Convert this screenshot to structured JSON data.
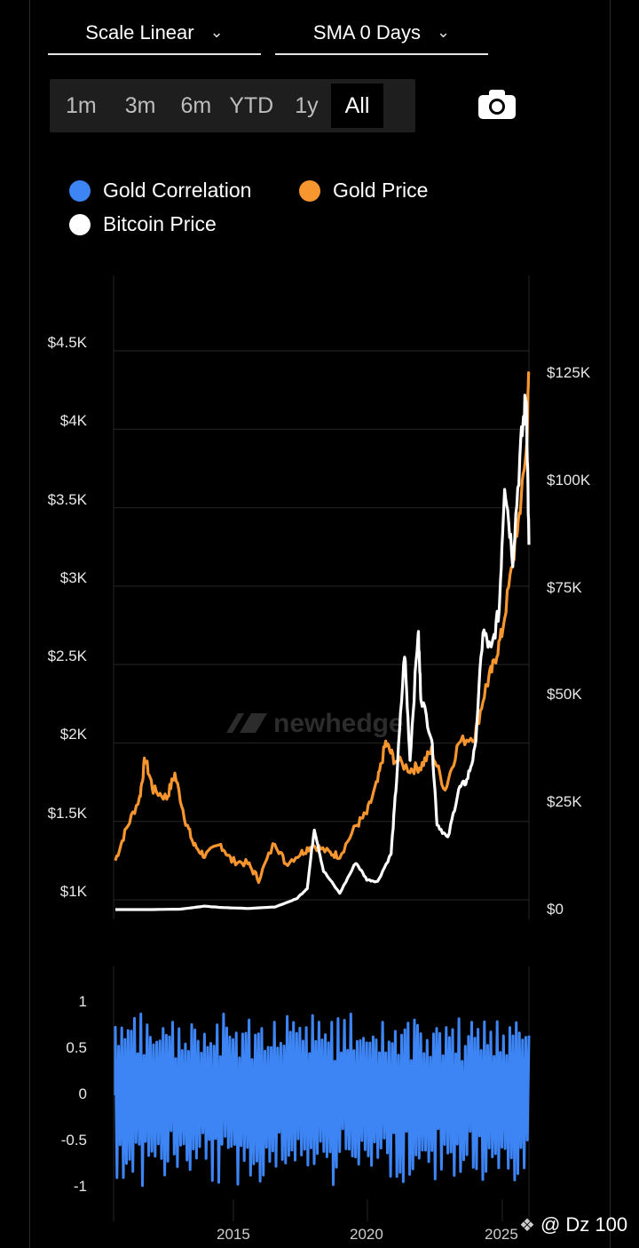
{
  "controls": {
    "scale_label": "Scale Linear",
    "sma_label": "SMA 0 Days",
    "ranges": [
      "1m",
      "3m",
      "6m",
      "YTD",
      "1y",
      "All"
    ],
    "active_range": "All"
  },
  "legend": [
    {
      "label": "Gold Correlation",
      "color": "#3d84f5"
    },
    {
      "label": "Gold Price",
      "color": "#f7952f"
    },
    {
      "label": "Bitcoin Price",
      "color": "#ffffff"
    }
  ],
  "watermark": {
    "logo": "newhedge",
    "badge": "@ Dz 100"
  },
  "chart_data": [
    {
      "type": "line",
      "title": "",
      "y_left_ticks": [
        "$1K",
        "$1.5K",
        "$2K",
        "$2.5K",
        "$3K",
        "$3.5K",
        "$4K",
        "$4.5K"
      ],
      "y_right_ticks": [
        "$0",
        "$25K",
        "$50K",
        "$75K",
        "$100K",
        "$125K"
      ],
      "ylim_left": [
        900,
        4600
      ],
      "ylim_right": [
        0,
        125000
      ],
      "x_ticks": [
        "2015",
        "2020",
        "2025"
      ],
      "series": [
        {
          "name": "Gold Price",
          "axis": "left",
          "color": "#f7952f",
          "x": [
            2010.6,
            2011.0,
            2011.5,
            2011.7,
            2012.0,
            2012.5,
            2012.8,
            2013.2,
            2013.5,
            2013.9,
            2014.5,
            2014.9,
            2015.5,
            2015.9,
            2016.5,
            2016.9,
            2017.5,
            2017.9,
            2018.5,
            2018.9,
            2019.5,
            2019.9,
            2020.3,
            2020.6,
            2020.9,
            2021.5,
            2021.9,
            2022.3,
            2022.8,
            2023.3,
            2023.9,
            2024.3,
            2024.6,
            2024.9,
            2025.3,
            2025.5,
            2025.8,
            2025.9
          ],
          "y": [
            1200,
            1400,
            1600,
            1850,
            1650,
            1600,
            1750,
            1450,
            1300,
            1230,
            1300,
            1200,
            1180,
            1080,
            1320,
            1180,
            1250,
            1300,
            1250,
            1230,
            1420,
            1500,
            1700,
            1950,
            1850,
            1780,
            1800,
            1900,
            1650,
            1950,
            2000,
            2300,
            2450,
            2650,
            3100,
            3350,
            3800,
            4300
          ]
        },
        {
          "name": "Bitcoin Price",
          "axis": "right",
          "color": "#ffffff",
          "x": [
            2010.6,
            2012.0,
            2013.0,
            2013.9,
            2014.5,
            2015.5,
            2016.5,
            2017.3,
            2017.7,
            2017.96,
            2018.3,
            2018.9,
            2019.5,
            2019.9,
            2020.3,
            2020.8,
            2021.0,
            2021.3,
            2021.5,
            2021.8,
            2021.9,
            2022.3,
            2022.5,
            2022.9,
            2023.3,
            2023.6,
            2023.9,
            2024.2,
            2024.5,
            2024.8,
            2025.0,
            2025.3,
            2025.6,
            2025.8,
            2025.9
          ],
          "y": [
            0,
            10,
            100,
            800,
            500,
            250,
            600,
            2500,
            5000,
            19000,
            9000,
            3800,
            11000,
            7000,
            6500,
            13000,
            30000,
            60000,
            35000,
            65000,
            50000,
            40000,
            20000,
            16500,
            28000,
            30000,
            37000,
            65000,
            60000,
            70000,
            100000,
            82000,
            108000,
            120000,
            85000
          ]
        }
      ]
    },
    {
      "type": "area",
      "title": "",
      "y_ticks": [
        "1",
        "0.5",
        "0",
        "-0.5",
        "-1"
      ],
      "ylim": [
        -1,
        1
      ],
      "x_ticks": [
        "2015",
        "2020",
        "2025"
      ],
      "series": [
        {
          "name": "Gold Correlation",
          "color": "#3d84f5",
          "x_range": [
            2010.6,
            2025.9
          ],
          "note_values_oscillate": [
            0.8,
            -0.9,
            0.7,
            -0.6,
            0.85,
            -0.95,
            0.6,
            -0.8,
            0.9,
            -0.7,
            0.75,
            -0.9,
            0.8,
            -0.85,
            0.7,
            -0.6,
            0.85,
            -0.95,
            0.6,
            -0.8
          ]
        }
      ]
    }
  ]
}
